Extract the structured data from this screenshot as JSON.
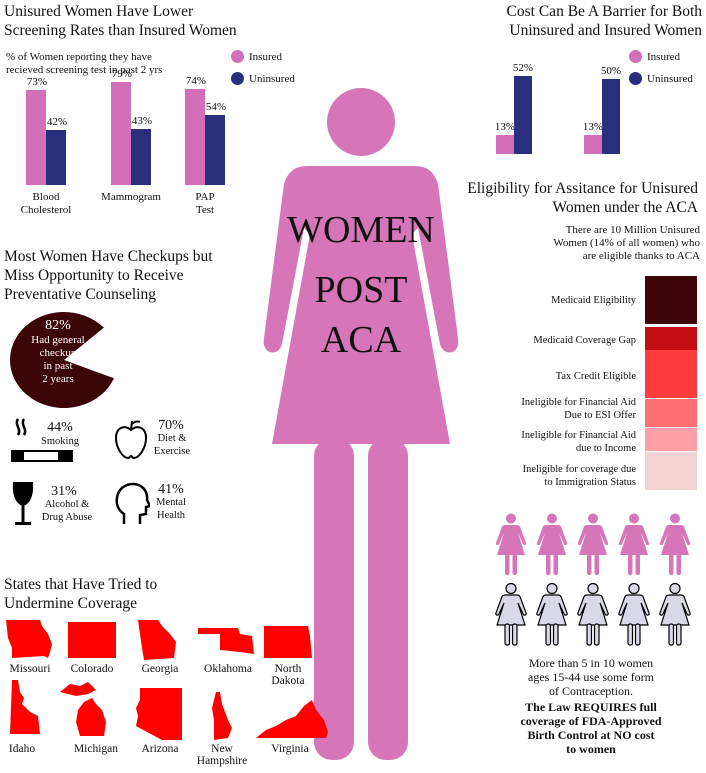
{
  "colors": {
    "insured": "#d36fb8",
    "uninsured": "#2a2f7d",
    "woman": "#d676b9",
    "map_red": "#ff0000",
    "pie": "#3d0606",
    "woman_light": "#d8d8e6"
  },
  "center": {
    "title_lines": [
      "WOMEN",
      "POST",
      "ACA"
    ]
  },
  "screening": {
    "title_lines": [
      "Unisured Women Have Lower",
      "Screening Rates than Insured Women"
    ],
    "subtitle_lines": [
      "% of Women reporting they have",
      "recieved screening test in past 2 yrs"
    ],
    "legend": [
      "Insured",
      "Uninsured"
    ]
  },
  "cost": {
    "title_lines": [
      "Cost Can Be A Barrier for Both",
      "Uninsured and Insured Women"
    ],
    "legend": [
      "Insured",
      "Uninsured"
    ]
  },
  "chart_data": [
    {
      "type": "bar",
      "title": "Unisured Women Have Lower Screening Rates than Insured Women",
      "categories": [
        "Blood Cholesterol",
        "Mammogram",
        "PAP Test"
      ],
      "category_lines": [
        [
          "Blood",
          "Cholesterol"
        ],
        [
          "Mammogram"
        ],
        [
          "PAP",
          "Test"
        ]
      ],
      "series": [
        {
          "name": "Insured",
          "values": [
            73,
            79,
            74
          ],
          "labels": [
            "73%",
            "79%",
            "74%"
          ]
        },
        {
          "name": "Uninsured",
          "values": [
            42,
            43,
            54
          ],
          "labels": [
            "42%",
            "43%",
            "54%"
          ]
        }
      ],
      "ylim": [
        0,
        100
      ]
    },
    {
      "type": "bar",
      "title": "Cost Can Be A Barrier for Both Uninsured and Insured Women",
      "categories": [
        "",
        ""
      ],
      "series": [
        {
          "name": "Insured",
          "values": [
            13,
            13
          ],
          "labels": [
            "13%",
            "13%"
          ]
        },
        {
          "name": "Uninsured",
          "values": [
            52,
            50
          ],
          "labels": [
            "52%",
            "50%"
          ]
        }
      ],
      "ylim": [
        0,
        100
      ]
    },
    {
      "type": "pie",
      "values": [
        82,
        18
      ],
      "label": "82%",
      "text_lines": [
        "Had general",
        "checkup",
        "in past",
        "2 years"
      ]
    }
  ],
  "checkups": {
    "title_lines": [
      "Most Women Have Checkups but",
      "Miss Opportunity to Receive",
      "Preventative Counseling"
    ],
    "items": [
      {
        "pct": "44%",
        "lines": [
          "Smoking"
        ],
        "icon": "smoking-icon"
      },
      {
        "pct": "70%",
        "lines": [
          "Diet &",
          "Exercise"
        ],
        "icon": "apple-icon"
      },
      {
        "pct": "31%",
        "lines": [
          "Alcohol &",
          "Drug Abuse"
        ],
        "icon": "wine-glass-icon"
      },
      {
        "pct": "41%",
        "lines": [
          "Mental",
          "Health"
        ],
        "icon": "head-icon"
      }
    ]
  },
  "eligibility": {
    "title_lines": [
      "Eligibility for Assitance for Unisured",
      "Women under the ACA"
    ],
    "intro_lines": [
      "There are 10 Million Unisured",
      "Women (14% of all women) who",
      "are eligible thanks to ACA"
    ],
    "categories": [
      {
        "lines": [
          "Medicaid Eligibility"
        ],
        "color": "#3d0509"
      },
      {
        "lines": [
          "Medicaid Coverage Gap"
        ],
        "color": "#c40d12"
      },
      {
        "lines": [
          "Tax Credit Eligible"
        ],
        "color": "#fb3c3e"
      },
      {
        "lines": [
          "Ineligible for Financial Aid",
          "Due to ESI Offer"
        ],
        "color": "#fd6f71"
      },
      {
        "lines": [
          "Ineligible for Financial Aid",
          "due to Income"
        ],
        "color": "#fd9fa3"
      },
      {
        "lines": [
          "Ineligible for coverage due",
          "to Immigration Status"
        ],
        "color": "#f3d2d4"
      }
    ]
  },
  "states": {
    "title_lines": [
      "States that Have Tried to",
      "Undermine Coverage"
    ],
    "row1": [
      {
        "name_lines": [
          "Missouri"
        ],
        "icon": "missouri-shape-icon"
      },
      {
        "name_lines": [
          "Colorado"
        ],
        "icon": "colorado-shape-icon"
      },
      {
        "name_lines": [
          "Georgia"
        ],
        "icon": "georgia-shape-icon"
      },
      {
        "name_lines": [
          "Oklahoma"
        ],
        "icon": "oklahoma-shape-icon"
      },
      {
        "name_lines": [
          "North",
          "Dakota"
        ],
        "icon": "north-dakota-shape-icon"
      }
    ],
    "row2": [
      {
        "name_lines": [
          "Idaho"
        ],
        "icon": "idaho-shape-icon"
      },
      {
        "name_lines": [
          "Michigan"
        ],
        "icon": "michigan-shape-icon"
      },
      {
        "name_lines": [
          "Arizona"
        ],
        "icon": "arizona-shape-icon"
      },
      {
        "name_lines": [
          "New",
          "Hampshire"
        ],
        "icon": "new-hampshire-shape-icon"
      },
      {
        "name_lines": [
          "Virginia"
        ],
        "icon": "virginia-shape-icon"
      }
    ]
  },
  "contraception": {
    "lines": [
      "More than 5 in 10 women",
      "ages 15-44 use some form",
      "of Contraception."
    ],
    "bold_lines": [
      "The Law REQUIRES full",
      "coverage of FDA-Approved",
      "Birth Control at NO cost",
      "to women"
    ]
  }
}
